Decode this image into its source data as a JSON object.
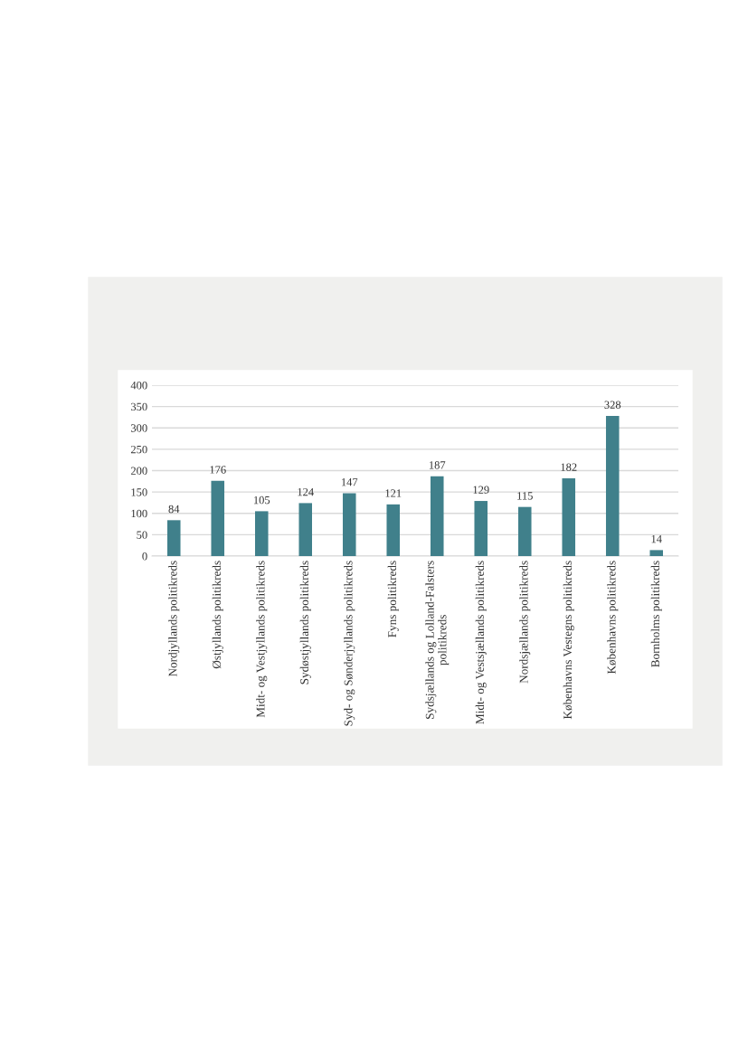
{
  "chart_data": {
    "type": "bar",
    "categories": [
      "Nordjyllands politikreds",
      "Østjyllands politikreds",
      "Midt- og Vestjyllands politikreds",
      "Sydøstjyllands politikreds",
      "Syd- og Sønderjyllands politikreds",
      "Fyns politikreds",
      "Sydsjællands og Lolland-Falsters\npolitikreds",
      "Midt- og Vestsjællands politikreds",
      "Nordsjællands politikreds",
      "Københavns Vestegns politikreds",
      "Københavns politikreds",
      "Bornholms politikreds"
    ],
    "values": [
      84,
      176,
      105,
      124,
      147,
      121,
      187,
      129,
      115,
      182,
      328,
      14
    ],
    "color": "#40808b",
    "ylim": [
      0,
      400
    ],
    "yticks": [
      0,
      50,
      100,
      150,
      200,
      250,
      300,
      350,
      400
    ],
    "grid": "y",
    "data_labels": true
  }
}
